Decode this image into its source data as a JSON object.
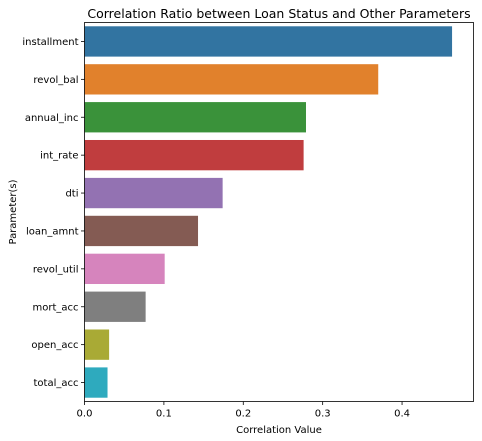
{
  "chart_data": {
    "type": "bar",
    "orientation": "horizontal",
    "title": "Correlation Ratio between Loan Status and Other Parameters",
    "xlabel": "Correlation Value",
    "ylabel": "Parameter(s)",
    "xlim": [
      0,
      0.49
    ],
    "xticks": [
      "0.0",
      "0.1",
      "0.2",
      "0.3",
      "0.4"
    ],
    "grid": false,
    "categories": [
      "installment",
      "revol_bal",
      "annual_inc",
      "int_rate",
      "dti",
      "loan_amnt",
      "revol_util",
      "mort_acc",
      "open_acc",
      "total_acc"
    ],
    "values": [
      0.463,
      0.37,
      0.279,
      0.276,
      0.174,
      0.143,
      0.101,
      0.077,
      0.031,
      0.029
    ],
    "colors": [
      "#3274a1",
      "#e1812c",
      "#3a923a",
      "#c03d3e",
      "#9372b2",
      "#845b53",
      "#d684bd",
      "#7f7f7f",
      "#a9aa35",
      "#2eaabe"
    ]
  }
}
